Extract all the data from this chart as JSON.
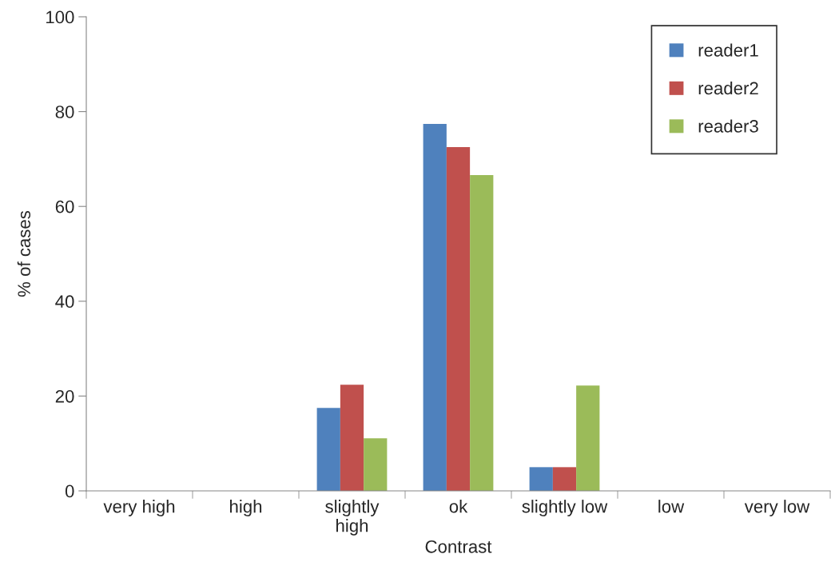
{
  "chart_data": {
    "type": "bar",
    "xlabel": "Contrast",
    "ylabel": "% of cases",
    "categories": [
      "very high",
      "high",
      "slightly\nhigh",
      "ok",
      "slightly low",
      "low",
      "very low"
    ],
    "series": [
      {
        "name": "reader1",
        "color": "#4f81bd",
        "values": [
          0,
          0,
          17.5,
          77.4,
          5,
          0,
          0
        ]
      },
      {
        "name": "reader2",
        "color": "#c0504d",
        "values": [
          0,
          0,
          22.4,
          72.5,
          5,
          0,
          0
        ]
      },
      {
        "name": "reader3",
        "color": "#9bbb59",
        "values": [
          0,
          0,
          11.1,
          66.6,
          22.2,
          0,
          0
        ]
      }
    ],
    "ylim": [
      0,
      100
    ],
    "yticks": [
      0,
      20,
      40,
      60,
      80,
      100
    ],
    "grid": false,
    "legend": "top right"
  }
}
